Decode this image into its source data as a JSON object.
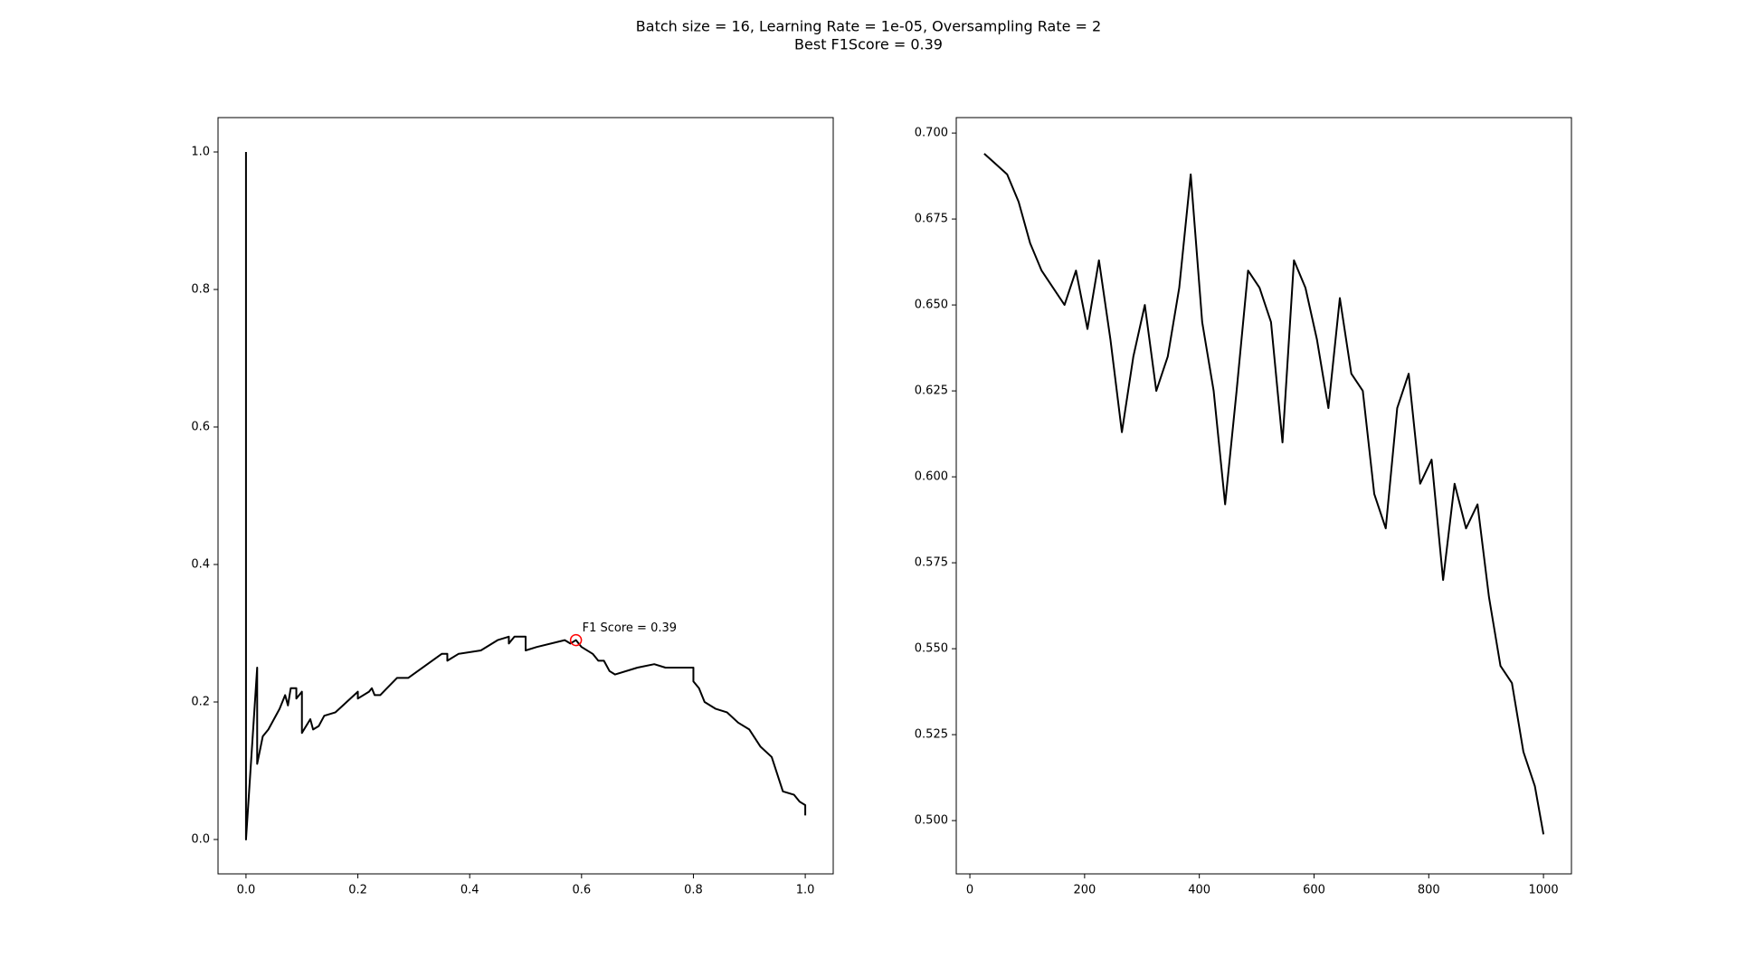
{
  "title": "Batch size = 16, Learning Rate = 1e-05, Oversampling Rate = 2",
  "subtitle": "Best F1Score = 0.39",
  "chart_data": [
    {
      "type": "line",
      "x": [
        0.0,
        0.0,
        0.02,
        0.02,
        0.03,
        0.04,
        0.06,
        0.07,
        0.075,
        0.08,
        0.09,
        0.09,
        0.1,
        0.1,
        0.115,
        0.12,
        0.13,
        0.14,
        0.16,
        0.18,
        0.2,
        0.2,
        0.22,
        0.225,
        0.23,
        0.24,
        0.27,
        0.29,
        0.35,
        0.36,
        0.36,
        0.38,
        0.42,
        0.45,
        0.47,
        0.47,
        0.48,
        0.5,
        0.5,
        0.52,
        0.57,
        0.58,
        0.59,
        0.6,
        0.62,
        0.63,
        0.64,
        0.65,
        0.66,
        0.7,
        0.73,
        0.75,
        0.8,
        0.8,
        0.81,
        0.82,
        0.84,
        0.86,
        0.88,
        0.9,
        0.92,
        0.94,
        0.95,
        0.96,
        0.98,
        0.99,
        1.0,
        1.0
      ],
      "series": [
        {
          "color": "#000000",
          "values": [
            1.0,
            0.0,
            0.25,
            0.11,
            0.15,
            0.16,
            0.19,
            0.21,
            0.195,
            0.22,
            0.22,
            0.205,
            0.215,
            0.155,
            0.175,
            0.16,
            0.165,
            0.18,
            0.185,
            0.2,
            0.215,
            0.205,
            0.215,
            0.22,
            0.21,
            0.21,
            0.235,
            0.235,
            0.27,
            0.27,
            0.26,
            0.27,
            0.275,
            0.29,
            0.295,
            0.285,
            0.295,
            0.295,
            0.275,
            0.28,
            0.29,
            0.285,
            0.29,
            0.28,
            0.27,
            0.26,
            0.26,
            0.245,
            0.24,
            0.25,
            0.255,
            0.25,
            0.25,
            0.23,
            0.22,
            0.2,
            0.19,
            0.185,
            0.17,
            0.16,
            0.135,
            0.12,
            0.095,
            0.07,
            0.065,
            0.055,
            0.05,
            0.035
          ]
        }
      ],
      "annotation": {
        "text": "F1 Score = 0.39",
        "x": 0.59,
        "y": 0.29,
        "color": "#ff0000"
      },
      "xlim": [
        -0.05,
        1.05
      ],
      "ylim": [
        -0.05,
        1.05
      ],
      "xticks": [
        {
          "value": 0,
          "label": "0.0"
        },
        0.2,
        0.4,
        0.6,
        0.8,
        {
          "value": 1,
          "label": "1.0"
        }
      ],
      "yticks": [
        {
          "value": 0,
          "label": "0.0"
        },
        0.2,
        0.4,
        0.6,
        0.8,
        {
          "value": 1,
          "label": "1.0"
        }
      ]
    },
    {
      "type": "line",
      "x": [
        25,
        45,
        65,
        85,
        105,
        125,
        145,
        165,
        185,
        205,
        225,
        245,
        265,
        285,
        305,
        325,
        345,
        365,
        385,
        405,
        425,
        445,
        465,
        485,
        505,
        525,
        545,
        565,
        585,
        605,
        625,
        645,
        665,
        685,
        705,
        725,
        745,
        765,
        785,
        805,
        825,
        845,
        865,
        885,
        905,
        925,
        945,
        965,
        985,
        1000
      ],
      "series": [
        {
          "color": "#000000",
          "values": [
            0.694,
            0.691,
            0.688,
            0.68,
            0.668,
            0.66,
            0.655,
            0.65,
            0.66,
            0.643,
            0.663,
            0.64,
            0.613,
            0.635,
            0.65,
            0.625,
            0.635,
            0.655,
            0.688,
            0.645,
            0.625,
            0.592,
            0.625,
            0.66,
            0.655,
            0.645,
            0.61,
            0.663,
            0.655,
            0.64,
            0.62,
            0.652,
            0.63,
            0.625,
            0.595,
            0.585,
            0.62,
            0.63,
            0.598,
            0.605,
            0.57,
            0.598,
            0.585,
            0.592,
            0.565,
            0.545,
            0.54,
            0.52,
            0.51,
            0.496
          ]
        }
      ],
      "xlim": [
        -23.75,
        1048.75
      ],
      "ylim": [
        0.4845,
        0.7045
      ],
      "xticks": [
        0,
        200,
        400,
        600,
        800,
        1000
      ],
      "yticks": [
        {
          "value": 0.5,
          "label": "0.500"
        },
        {
          "value": 0.525,
          "label": "0.525"
        },
        {
          "value": 0.55,
          "label": "0.550"
        },
        {
          "value": 0.575,
          "label": "0.575"
        },
        {
          "value": 0.6,
          "label": "0.600"
        },
        {
          "value": 0.625,
          "label": "0.625"
        },
        {
          "value": 0.65,
          "label": "0.650"
        },
        {
          "value": 0.675,
          "label": "0.675"
        },
        {
          "value": 0.7,
          "label": "0.700"
        }
      ]
    }
  ]
}
